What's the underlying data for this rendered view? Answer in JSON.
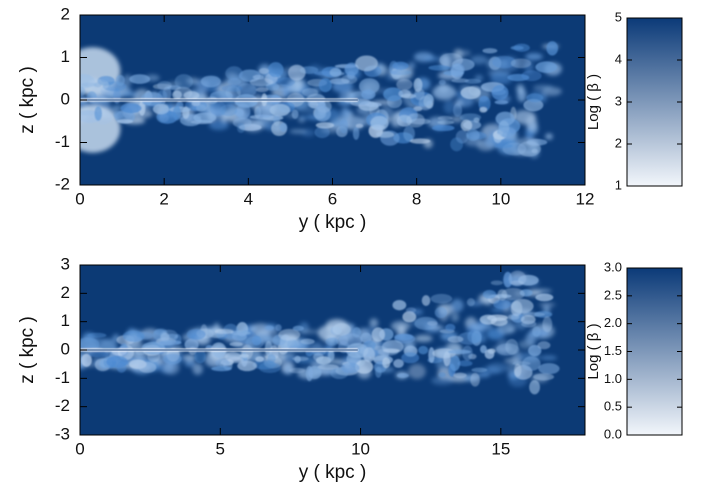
{
  "chart_data": [
    {
      "type": "heatmap",
      "xlabel": "y ( kpc )",
      "ylabel": "z ( kpc )",
      "xlim": [
        0,
        12
      ],
      "xticks": [
        0,
        2,
        4,
        6,
        8,
        10,
        12
      ],
      "ylim": [
        -2,
        2
      ],
      "yticks": [
        -2,
        -1,
        0,
        1,
        2
      ],
      "background": "#0c3a75",
      "colormap": [
        "#f2f6fb",
        "#0b3a78"
      ],
      "colorbar": {
        "label": "Log ( β )",
        "lim": [
          1,
          5
        ],
        "ticks": [
          1,
          2,
          3,
          4,
          5
        ]
      }
    },
    {
      "type": "heatmap",
      "xlabel": "y ( kpc )",
      "ylabel": "z ( kpc )",
      "xlim": [
        0,
        18
      ],
      "xticks": [
        0,
        5,
        10,
        15
      ],
      "ylim": [
        -3,
        3
      ],
      "yticks": [
        -3,
        -2,
        -1,
        0,
        1,
        2,
        3
      ],
      "background": "#0c3a75",
      "colormap": [
        "#f2f6fb",
        "#0b3a78"
      ],
      "colorbar": {
        "label": "Log ( β )",
        "lim": [
          0,
          3
        ],
        "ticks": [
          {
            "value": 0,
            "label": "0.0"
          },
          {
            "value": 0.5,
            "label": "0.5"
          },
          {
            "value": 1,
            "label": "1.0"
          },
          {
            "value": 1.5,
            "label": "1.5"
          },
          {
            "value": 2,
            "label": "2.0"
          },
          {
            "value": 2.5,
            "label": "2.5"
          },
          {
            "value": 3,
            "label": "3.0"
          }
        ]
      }
    }
  ]
}
